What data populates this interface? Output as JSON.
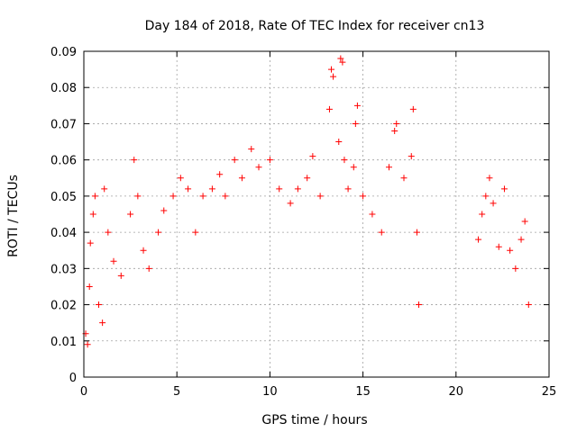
{
  "chart_data": {
    "type": "scatter",
    "title": "Day 184 of 2018, Rate Of TEC Index for receiver cn13",
    "xlabel": "GPS time / hours",
    "ylabel": "ROTI / TECUs",
    "xlim": [
      0,
      25
    ],
    "ylim": [
      0,
      0.09
    ],
    "x_ticks": [
      "0",
      "5",
      "10",
      "15",
      "20",
      "25"
    ],
    "y_ticks": [
      "0",
      "0.01",
      "0.02",
      "0.03",
      "0.04",
      "0.05",
      "0.06",
      "0.07",
      "0.08",
      "0.09"
    ],
    "grid": true,
    "marker": "+",
    "color": "#ff0000",
    "series": [
      {
        "points": [
          [
            0.1,
            0.012
          ],
          [
            0.2,
            0.009
          ],
          [
            0.3,
            0.025
          ],
          [
            0.35,
            0.037
          ],
          [
            0.5,
            0.045
          ],
          [
            0.6,
            0.05
          ],
          [
            0.8,
            0.02
          ],
          [
            1.0,
            0.015
          ],
          [
            1.1,
            0.052
          ],
          [
            1.3,
            0.04
          ],
          [
            1.6,
            0.032
          ],
          [
            2.0,
            0.028
          ],
          [
            2.5,
            0.045
          ],
          [
            2.7,
            0.06
          ],
          [
            2.9,
            0.05
          ],
          [
            3.2,
            0.035
          ],
          [
            3.5,
            0.03
          ],
          [
            4.0,
            0.04
          ],
          [
            4.3,
            0.046
          ],
          [
            4.8,
            0.05
          ],
          [
            5.2,
            0.055
          ],
          [
            5.6,
            0.052
          ],
          [
            6.0,
            0.04
          ],
          [
            6.4,
            0.05
          ],
          [
            6.9,
            0.052
          ],
          [
            7.3,
            0.056
          ],
          [
            7.6,
            0.05
          ],
          [
            8.1,
            0.06
          ],
          [
            8.5,
            0.055
          ],
          [
            9.0,
            0.063
          ],
          [
            9.4,
            0.058
          ],
          [
            10.0,
            0.06
          ],
          [
            10.5,
            0.052
          ],
          [
            11.1,
            0.048
          ],
          [
            11.5,
            0.052
          ],
          [
            12.0,
            0.055
          ],
          [
            12.3,
            0.061
          ],
          [
            12.7,
            0.05
          ],
          [
            13.2,
            0.074
          ],
          [
            13.3,
            0.085
          ],
          [
            13.4,
            0.083
          ],
          [
            13.7,
            0.065
          ],
          [
            13.8,
            0.088
          ],
          [
            13.9,
            0.087
          ],
          [
            14.0,
            0.06
          ],
          [
            14.2,
            0.052
          ],
          [
            14.5,
            0.058
          ],
          [
            14.6,
            0.07
          ],
          [
            14.7,
            0.075
          ],
          [
            15.0,
            0.05
          ],
          [
            15.5,
            0.045
          ],
          [
            16.0,
            0.04
          ],
          [
            16.4,
            0.058
          ],
          [
            16.7,
            0.068
          ],
          [
            16.8,
            0.07
          ],
          [
            17.2,
            0.055
          ],
          [
            17.6,
            0.061
          ],
          [
            17.7,
            0.074
          ],
          [
            17.9,
            0.04
          ],
          [
            18.0,
            0.02
          ],
          [
            21.2,
            0.038
          ],
          [
            21.4,
            0.045
          ],
          [
            21.6,
            0.05
          ],
          [
            21.8,
            0.055
          ],
          [
            22.0,
            0.048
          ],
          [
            22.3,
            0.036
          ],
          [
            22.6,
            0.052
          ],
          [
            22.9,
            0.035
          ],
          [
            23.2,
            0.03
          ],
          [
            23.5,
            0.038
          ],
          [
            23.7,
            0.043
          ],
          [
            23.9,
            0.02
          ]
        ]
      }
    ],
    "gaps": [
      [
        18.0,
        21.2
      ]
    ]
  }
}
